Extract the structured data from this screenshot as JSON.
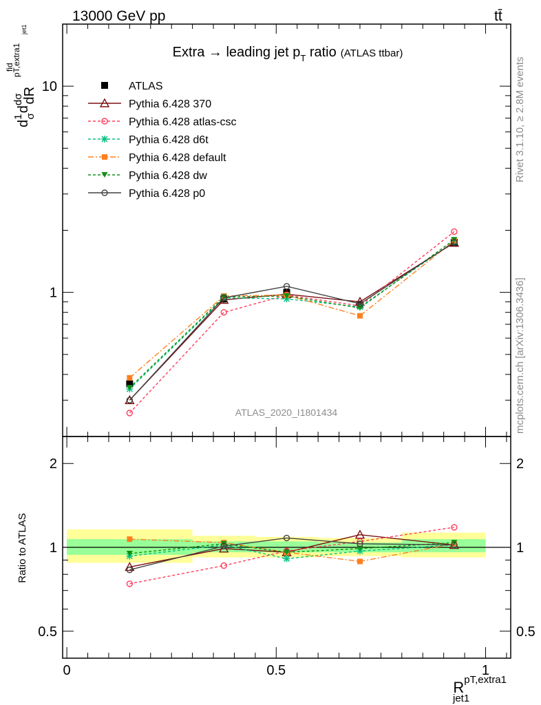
{
  "header": {
    "energy_label": "13000 GeV pp",
    "process_label": "tt̄",
    "rivet_label": "Rivet 3.1.10, ≥ 2.8M events",
    "mcplots_label": "mcplots.cern.ch [arXiv:1306.3436]",
    "analysis_id": "ATLAS_2020_I1801434"
  },
  "chart_data": [
    {
      "type": "line",
      "title": "Extra → leading jet p_T ratio (ATLAS ttbar)",
      "title_main": "Extra → leading jet p",
      "title_sub": "T",
      "title_tail": " ratio",
      "title_small": "(ATLAS ttbar)",
      "ylabel": "1/σ dσ^fid_{pT,extra1} / dR_jet1",
      "yscale": "log",
      "ylim": [
        0.2,
        20
      ],
      "xlim": [
        -0.01,
        1.06
      ],
      "yticks": [
        {
          "v": 1,
          "label": "1"
        },
        {
          "v": 10,
          "label": "10"
        }
      ],
      "x": [
        0.15,
        0.375,
        0.525,
        0.7,
        0.925
      ],
      "legend_position": "top-left",
      "series": [
        {
          "name": "ATLAS",
          "color": "#000000",
          "marker": "square",
          "dash": "none",
          "values": [
            0.36,
            0.93,
            1.0,
            0.87,
            1.75
          ],
          "errors": [
            0.02,
            0.04,
            0.04,
            0.04,
            0.06
          ],
          "data": true
        },
        {
          "name": "Pythia 6.428 370",
          "color": "#7a1010",
          "marker": "triangle-open",
          "dash": "none",
          "values": [
            0.3,
            0.92,
            0.98,
            0.9,
            1.74
          ]
        },
        {
          "name": "Pythia 6.428 atlas-csc",
          "color": "#ff3c5a",
          "marker": "circle-open",
          "dash": "4,3",
          "values": [
            0.26,
            0.8,
            0.97,
            0.86,
            1.97
          ]
        },
        {
          "name": "Pythia 6.428 d6t",
          "color": "#00c080",
          "marker": "star",
          "dash": "4,3",
          "values": [
            0.34,
            0.94,
            0.93,
            0.85,
            1.76
          ]
        },
        {
          "name": "Pythia 6.428 default",
          "color": "#ff7f1e",
          "marker": "square-filled",
          "dash": "8,3,2,3",
          "values": [
            0.385,
            0.96,
            0.97,
            0.77,
            1.78
          ]
        },
        {
          "name": "Pythia 6.428 dw",
          "color": "#109010",
          "marker": "triangle-down",
          "dash": "4,3",
          "values": [
            0.345,
            0.95,
            0.96,
            0.84,
            1.8
          ]
        },
        {
          "name": "Pythia 6.428 p0",
          "color": "#404040",
          "marker": "circle-open",
          "dash": "none",
          "values": [
            0.3,
            0.94,
            1.07,
            0.88,
            1.75
          ]
        }
      ]
    },
    {
      "type": "line",
      "ylabel": "Ratio to ATLAS",
      "xlabel": "R^{pT,extra1}_{jet1}",
      "xlabel_main": "R",
      "xlabel_sup": "pT,extra1",
      "xlabel_sub": "jet1",
      "yscale": "log",
      "ylim": [
        0.4,
        2.5
      ],
      "xlim": [
        -0.01,
        1.06
      ],
      "yticks": [
        {
          "v": 0.5,
          "label": "0.5"
        },
        {
          "v": 1,
          "label": "1"
        },
        {
          "v": 2,
          "label": "2"
        }
      ],
      "xticks": [
        {
          "v": 0,
          "label": "0"
        },
        {
          "v": 0.5,
          "label": "0.5"
        },
        {
          "v": 1,
          "label": "1"
        }
      ],
      "x": [
        0.15,
        0.375,
        0.525,
        0.7,
        0.925
      ],
      "bands": [
        {
          "x0": 0.0,
          "x1": 0.3,
          "yellow": [
            0.88,
            1.16
          ],
          "green": [
            0.94,
            1.07
          ]
        },
        {
          "x0": 0.3,
          "x1": 0.45,
          "yellow": [
            0.92,
            1.1
          ],
          "green": [
            0.96,
            1.05
          ]
        },
        {
          "x0": 0.45,
          "x1": 0.6,
          "yellow": [
            0.92,
            1.09
          ],
          "green": [
            0.96,
            1.05
          ]
        },
        {
          "x0": 0.6,
          "x1": 0.8,
          "yellow": [
            0.93,
            1.08
          ],
          "green": [
            0.96,
            1.04
          ]
        },
        {
          "x0": 0.8,
          "x1": 1.0,
          "yellow": [
            0.92,
            1.13
          ],
          "green": [
            0.96,
            1.07
          ]
        }
      ],
      "series": [
        {
          "name": "Pythia 6.428 370",
          "color": "#7a1010",
          "marker": "triangle-open",
          "dash": "none",
          "values": [
            0.85,
            0.99,
            0.96,
            1.11,
            1.02
          ]
        },
        {
          "name": "Pythia 6.428 atlas-csc",
          "color": "#ff3c5a",
          "marker": "circle-open",
          "dash": "4,3",
          "values": [
            0.74,
            0.86,
            0.97,
            1.05,
            1.18
          ]
        },
        {
          "name": "Pythia 6.428 d6t",
          "color": "#00c080",
          "marker": "star",
          "dash": "4,3",
          "values": [
            0.93,
            1.02,
            0.91,
            0.97,
            1.02
          ]
        },
        {
          "name": "Pythia 6.428 default",
          "color": "#ff7f1e",
          "marker": "square-filled",
          "dash": "8,3,2,3",
          "values": [
            1.07,
            1.04,
            0.96,
            0.89,
            1.03
          ]
        },
        {
          "name": "Pythia 6.428 dw",
          "color": "#109010",
          "marker": "triangle-down",
          "dash": "4,3",
          "values": [
            0.95,
            1.03,
            0.96,
            0.99,
            1.04
          ]
        },
        {
          "name": "Pythia 6.428 p0",
          "color": "#404040",
          "marker": "circle-open",
          "dash": "none",
          "values": [
            0.83,
            1.01,
            1.08,
            1.03,
            1.02
          ]
        }
      ]
    }
  ]
}
